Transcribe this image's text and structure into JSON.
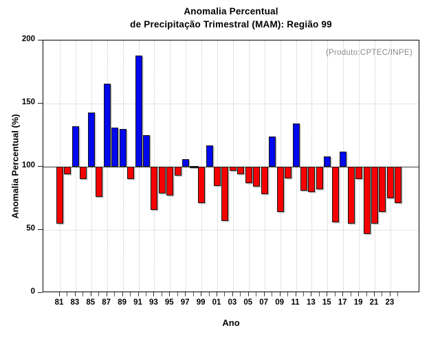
{
  "title": {
    "line1": "Anomalia Percentual",
    "line2": "de Precipitação Trimestral (MAM): Região 99"
  },
  "annotation": "(Produto:CPTEC/INPE)",
  "axes": {
    "y_label": "Anomalia Percentual (%)",
    "x_label": "Ano",
    "y_ticks": [
      0,
      50,
      100,
      150,
      200
    ],
    "x_tick_labels": [
      "81",
      "83",
      "85",
      "87",
      "89",
      "91",
      "93",
      "95",
      "97",
      "99",
      "01",
      "03",
      "05",
      "07",
      "09",
      "11",
      "13",
      "15",
      "17",
      "19",
      "21",
      "23"
    ]
  },
  "colors": {
    "above_baseline": "#0008ee",
    "below_baseline": "#f40000",
    "neutral_dash": "#151515",
    "annotation_gray": "#8a8a8a",
    "gridline": "#c9c9c9"
  },
  "chart_data": {
    "type": "bar",
    "title": "Anomalia Percentual de Precipitação Trimestral (MAM): Região 99",
    "xlabel": "Ano",
    "ylabel": "Anomalia Percentual (%)",
    "ylim": [
      0,
      200
    ],
    "baseline": 100,
    "grid": "dotted",
    "legend_position": "none",
    "color_rule": "blue if value > 100, red if value < 100, black dash if value = 100",
    "categories": [
      1981,
      1982,
      1983,
      1984,
      1985,
      1986,
      1987,
      1988,
      1989,
      1990,
      1991,
      1992,
      1993,
      1994,
      1995,
      1996,
      1997,
      1998,
      1999,
      2000,
      2001,
      2002,
      2003,
      2004,
      2005,
      2006,
      2007,
      2008,
      2009,
      2010,
      2011,
      2012,
      2013,
      2014,
      2015,
      2016,
      2017,
      2018,
      2019,
      2020,
      2021,
      2022,
      2023,
      2024
    ],
    "values": [
      55,
      94,
      132,
      90,
      143,
      76,
      166,
      131,
      130,
      90,
      188,
      125,
      66,
      79,
      77,
      93,
      106,
      100,
      71,
      117,
      85,
      57,
      97,
      94,
      87,
      84,
      78,
      124,
      64,
      91,
      134,
      81,
      80,
      82,
      108,
      56,
      112,
      55,
      90,
      47,
      55,
      64,
      75,
      71
    ]
  }
}
